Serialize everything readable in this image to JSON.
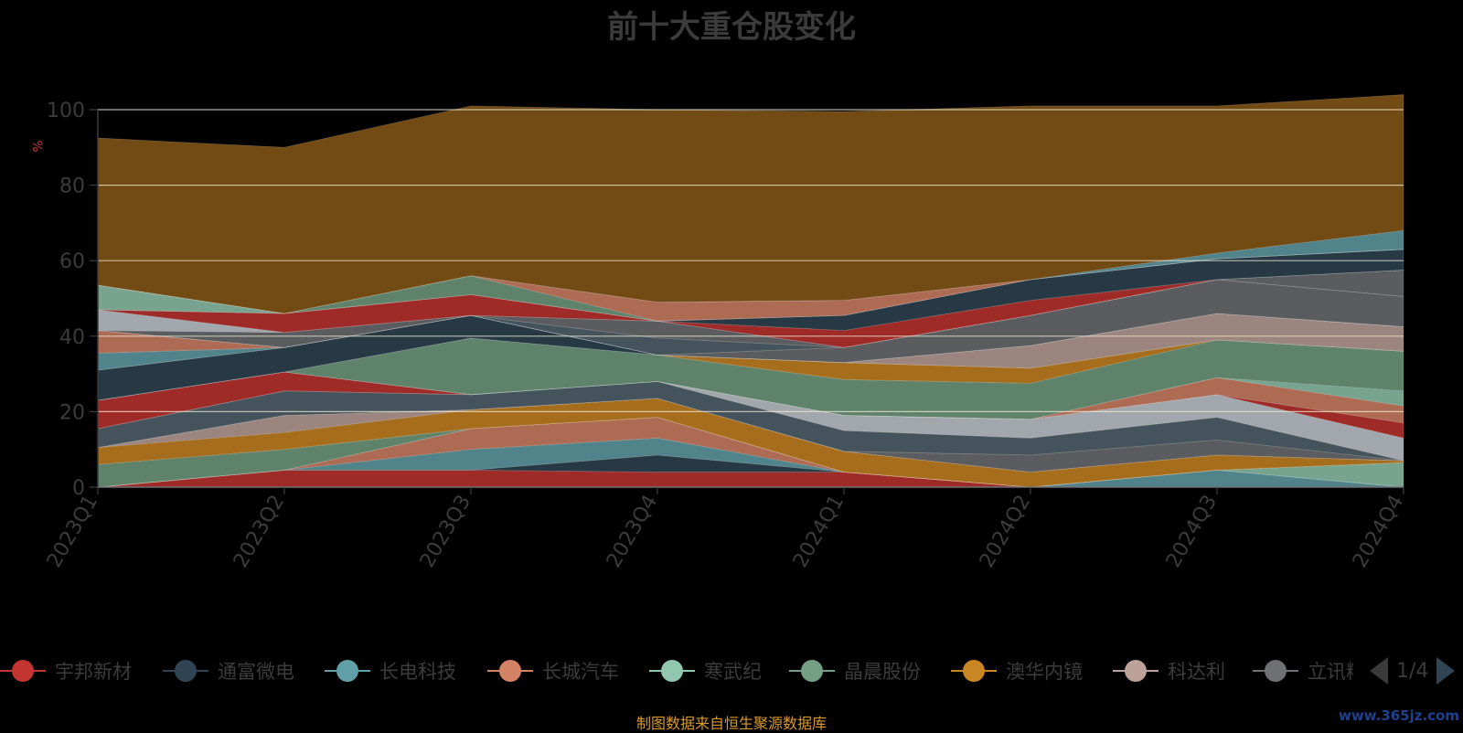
{
  "title": "前十大重仓股变化",
  "ylabel": "%",
  "source_note": "制图数据来自恒生聚源数据库",
  "watermark": "www.365jz.com",
  "legend": {
    "items": [
      {
        "label": "宇邦新材",
        "color": "#c23531"
      },
      {
        "label": "通富微电",
        "color": "#2f4554"
      },
      {
        "label": "长电科技",
        "color": "#61a0a8"
      },
      {
        "label": "长城汽车",
        "color": "#d48265"
      },
      {
        "label": "寒武纪",
        "color": "#91c7ae"
      },
      {
        "label": "晶晨股份",
        "color": "#749f83"
      },
      {
        "label": "澳华内镜",
        "color": "#ca8622"
      },
      {
        "label": "科达利",
        "color": "#bda29a"
      },
      {
        "label": "立讯精密",
        "color": "#6e7074"
      }
    ],
    "page": "1/4"
  },
  "chart_data": {
    "type": "area",
    "stacked": true,
    "categories": [
      "2023Q1",
      "2023Q2",
      "2023Q3",
      "2023Q4",
      "2024Q1",
      "2024Q2",
      "2024Q3",
      "2024Q4"
    ],
    "ylim": [
      0,
      100
    ],
    "yticks": [
      0,
      20,
      40,
      60,
      80,
      100
    ],
    "grid": true,
    "series": [
      {
        "color": "#c23531",
        "values": [
          0,
          4.5,
          4.5,
          4,
          4,
          0,
          0,
          0
        ]
      },
      {
        "color": "#2f4554",
        "values": [
          0,
          0,
          0,
          4.5,
          0,
          0,
          0,
          0
        ]
      },
      {
        "color": "#61a0a8",
        "values": [
          0,
          0,
          5.5,
          4.5,
          0,
          0,
          4.5,
          0
        ]
      },
      {
        "color": "#d48265",
        "values": [
          0,
          0,
          5.5,
          5.5,
          0,
          0,
          0,
          0
        ]
      },
      {
        "color": "#91c7ae",
        "values": [
          0,
          0,
          0,
          0,
          0,
          0,
          0,
          6.5
        ]
      },
      {
        "color": "#749f83",
        "values": [
          6,
          5.5,
          0,
          0,
          0,
          0,
          0,
          0
        ]
      },
      {
        "color": "#ca8622",
        "values": [
          4.5,
          4.5,
          5,
          5,
          5.5,
          4,
          4,
          0.5
        ]
      },
      {
        "color": "#bda29a",
        "values": [
          0,
          4.5,
          0,
          0,
          0,
          0,
          0,
          0
        ]
      },
      {
        "color": "#6e7074",
        "values": [
          0,
          0,
          0,
          0,
          0,
          4.5,
          4,
          0
        ]
      },
      {
        "color": "#546570",
        "values": [
          5,
          6.5,
          4,
          4.5,
          5.5,
          4.5,
          6,
          0
        ]
      },
      {
        "color": "#c4ccd3",
        "values": [
          0,
          0,
          0,
          0,
          4,
          5,
          6,
          6
        ]
      },
      {
        "color": "#c23531",
        "values": [
          7.5,
          5,
          0,
          0,
          0,
          0,
          0,
          4
        ]
      },
      {
        "color": "#d48265",
        "values": [
          0,
          0,
          0,
          0,
          0,
          0,
          4.5,
          4.5
        ]
      },
      {
        "color": "#91c7ae",
        "values": [
          0,
          0,
          0,
          0,
          0,
          0,
          0,
          4
        ]
      },
      {
        "color": "#749f83",
        "values": [
          0,
          0,
          15,
          7,
          9.5,
          9.5,
          10,
          10.5
        ]
      },
      {
        "color": "#ca8622",
        "values": [
          0,
          0,
          0,
          0,
          4.5,
          4,
          0,
          0
        ]
      },
      {
        "color": "#2f4554",
        "values": [
          8,
          6.5,
          6,
          0,
          0,
          0,
          0,
          0
        ]
      },
      {
        "color": "#bda29a",
        "values": [
          0,
          0,
          0,
          0,
          0,
          6,
          7,
          6.5
        ]
      },
      {
        "color": "#61a0a8",
        "values": [
          4.5,
          0,
          0,
          0,
          0,
          0,
          0,
          0
        ]
      },
      {
        "color": "#d48265",
        "values": [
          6,
          0,
          0,
          0,
          0,
          0,
          0,
          0
        ]
      },
      {
        "color": "#6e7074",
        "values": [
          0,
          0,
          0,
          0,
          4,
          8,
          9,
          8
        ]
      },
      {
        "color": "#546570",
        "values": [
          0,
          0,
          0,
          4.5,
          0,
          0,
          0,
          0
        ]
      },
      {
        "color": "#6e7074",
        "values": [
          0,
          4,
          0,
          4.5,
          0,
          0,
          0,
          7
        ]
      },
      {
        "color": "#c4ccd3",
        "values": [
          5.5,
          0,
          0,
          0,
          0,
          0,
          0,
          0
        ]
      },
      {
        "color": "#c23531",
        "values": [
          0,
          5,
          5.5,
          0,
          4.5,
          4,
          0,
          0
        ]
      },
      {
        "color": "#2f4554",
        "values": [
          0,
          0,
          0,
          0,
          4,
          5.5,
          5.5,
          5.5
        ]
      },
      {
        "color": "#91c7ae",
        "values": [
          6.5,
          0,
          0,
          0,
          0,
          0,
          0,
          0
        ]
      },
      {
        "color": "#749f83",
        "values": [
          0,
          0,
          5,
          0,
          0,
          0,
          0,
          0
        ]
      },
      {
        "color": "#d48265",
        "values": [
          0,
          0,
          0,
          5,
          4,
          0,
          0,
          0
        ]
      },
      {
        "color": "#61a0a8",
        "values": [
          0,
          0,
          0,
          0,
          0,
          0,
          1.5,
          5
        ]
      },
      {
        "color": "#8a5a18",
        "values": [
          39,
          44,
          45,
          51,
          50,
          46,
          39,
          36
        ]
      }
    ]
  }
}
